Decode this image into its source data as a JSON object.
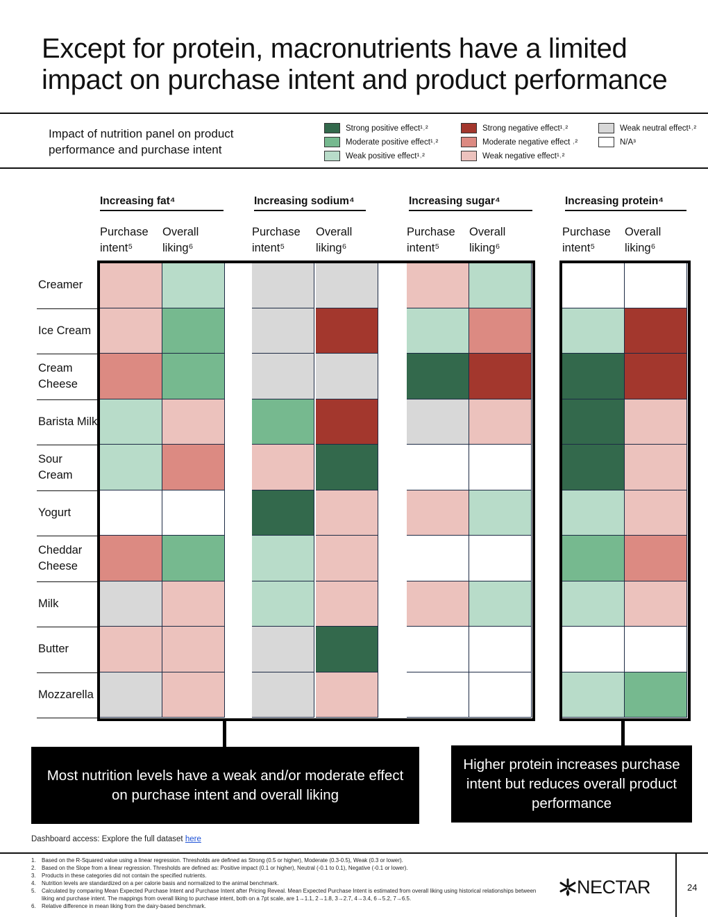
{
  "title": "Except for protein, macronutrients have a limited impact on purchase intent and product performance",
  "subtitle": "Impact of nutrition panel on product performance and purchase intent",
  "colors": {
    "strong_pos": "#33694c",
    "mod_pos": "#76b98f",
    "weak_pos": "#b8dcc9",
    "strong_neg": "#a3372d",
    "mod_neg": "#dc8a82",
    "weak_neg": "#ecc2bd",
    "neutral": "#d8d8d8",
    "na": "#ffffff"
  },
  "legend": [
    {
      "key": "strong_pos",
      "label": "Strong positive effect¹˒²"
    },
    {
      "key": "mod_pos",
      "label": "Moderate positive effect¹˒²"
    },
    {
      "key": "weak_pos",
      "label": "Weak positive effect¹˒²"
    },
    {
      "key": "strong_neg",
      "label": "Strong negative effect¹˒²"
    },
    {
      "key": "mod_neg",
      "label": "Moderate negative effect ˒²"
    },
    {
      "key": "weak_neg",
      "label": "Weak negative effect¹˒²"
    },
    {
      "key": "neutral",
      "label": "Weak neutral effect¹˒²"
    },
    {
      "key": "na",
      "label": "N/A³"
    }
  ],
  "groups": [
    {
      "title": "Increasing fat⁴"
    },
    {
      "title": "Increasing sodium⁴"
    },
    {
      "title": "Increasing sugar⁴"
    },
    {
      "title": "Increasing protein⁴"
    }
  ],
  "col_headers": {
    "purchase": "Purchase intent⁵",
    "liking": "Overall liking⁶"
  },
  "rows": [
    {
      "label": "Creamer",
      "cells": [
        "weak_neg",
        "weak_pos",
        "neutral",
        "neutral",
        "weak_neg",
        "weak_pos",
        "na",
        "na"
      ]
    },
    {
      "label": "Ice Cream",
      "cells": [
        "weak_neg",
        "mod_pos",
        "neutral",
        "strong_neg",
        "weak_pos",
        "mod_neg",
        "weak_pos",
        "strong_neg"
      ]
    },
    {
      "label": "Cream Cheese",
      "cells": [
        "mod_neg",
        "mod_pos",
        "neutral",
        "neutral",
        "strong_pos",
        "strong_neg",
        "strong_pos",
        "strong_neg"
      ]
    },
    {
      "label": "Barista Milk",
      "cells": [
        "weak_pos",
        "weak_neg",
        "mod_pos",
        "strong_neg",
        "neutral",
        "weak_neg",
        "strong_pos",
        "weak_neg"
      ]
    },
    {
      "label": "Sour Cream",
      "cells": [
        "weak_pos",
        "mod_neg",
        "weak_neg",
        "strong_pos",
        "na",
        "na",
        "strong_pos",
        "weak_neg"
      ]
    },
    {
      "label": "Yogurt",
      "cells": [
        "na",
        "na",
        "strong_pos",
        "weak_neg",
        "weak_neg",
        "weak_pos",
        "weak_pos",
        "weak_neg"
      ]
    },
    {
      "label": "Cheddar Cheese",
      "cells": [
        "mod_neg",
        "mod_pos",
        "weak_pos",
        "weak_neg",
        "na",
        "na",
        "mod_pos",
        "mod_neg"
      ]
    },
    {
      "label": "Milk",
      "cells": [
        "neutral",
        "weak_neg",
        "weak_pos",
        "weak_neg",
        "weak_neg",
        "weak_pos",
        "weak_pos",
        "weak_neg"
      ]
    },
    {
      "label": "Butter",
      "cells": [
        "weak_neg",
        "weak_neg",
        "neutral",
        "strong_pos",
        "na",
        "na",
        "na",
        "na"
      ]
    },
    {
      "label": "Mozzarella",
      "cells": [
        "neutral",
        "weak_neg",
        "neutral",
        "weak_neg",
        "na",
        "na",
        "weak_pos",
        "mod_pos"
      ]
    }
  ],
  "callouts": {
    "left": "Most nutrition levels have a weak and/or moderate effect on purchase intent and overall liking",
    "right": "Higher protein increases purchase intent but reduces overall product performance"
  },
  "dashboard": {
    "text": "Dashboard access: Explore the full dataset ",
    "link": "here"
  },
  "footnotes": [
    {
      "n": "1.",
      "text": "Based on the R-Squared value using a linear regression. Thresholds are defined as Strong (0.5 or higher), Moderate (0.3-0.5), Weak (0.3 or lower)."
    },
    {
      "n": "2.",
      "text": "Based on the Slope from a linear regression. Thresholds are defined as: Positive impact (0.1 or higher), Neutral (-0.1 to 0.1), Negative (-0.1 or lower)."
    },
    {
      "n": "3.",
      "text": "Products in these categories did not contain the specified nutrients."
    },
    {
      "n": "4.",
      "text": "Nutrition levels are standardized on a per calorie basis and normalized to the animal benchmark."
    },
    {
      "n": "5.",
      "text": "Calculated by comparing Mean Expected Purchase Intent and Purchase Intent after Pricing Reveal. Mean Expected Purchase Intent is estimated from overall liking using historical relationships between liking and purchase intent. The mappings from overall liking to purchase intent, both on a 7pt scale, are 1→1.1, 2→1.8, 3→2.7, 4→3.4, 6→5.2, 7→6.5."
    },
    {
      "n": "6.",
      "text": "Relative difference in mean liking from the dairy-based benchmark."
    }
  ],
  "logo": {
    "text": "NECTAR"
  },
  "page_number": "24"
}
